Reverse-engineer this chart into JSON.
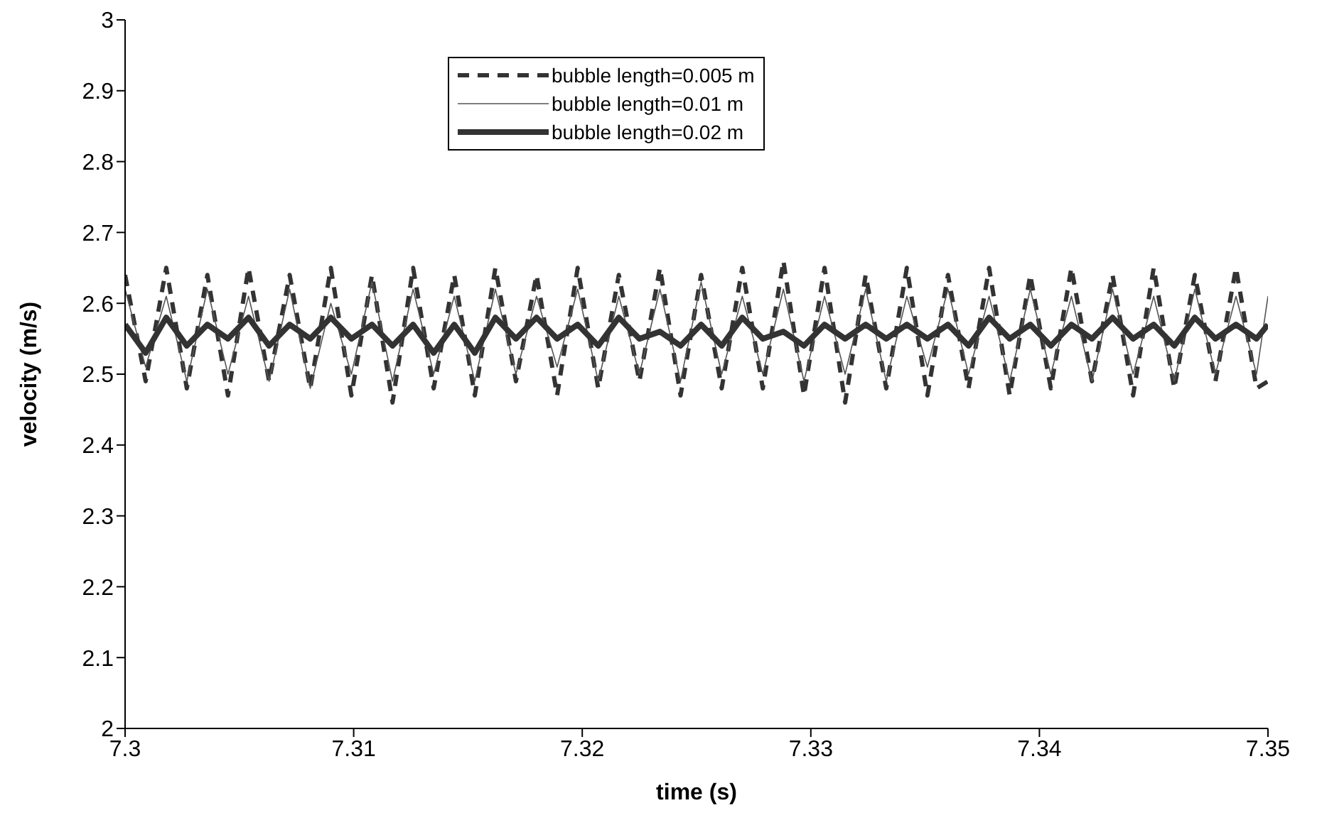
{
  "chart_data": {
    "type": "line",
    "xlabel": "time (s)",
    "ylabel": "velocity (m/s)",
    "x": [
      7.3,
      7.3009,
      7.3018,
      7.3027,
      7.3036,
      7.3045,
      7.3054,
      7.3063,
      7.3072,
      7.3081,
      7.309,
      7.3099,
      7.3108,
      7.3117,
      7.3126,
      7.3135,
      7.3144,
      7.3153,
      7.3162,
      7.3171,
      7.318,
      7.3189,
      7.3198,
      7.3207,
      7.3216,
      7.3225,
      7.3234,
      7.3243,
      7.3252,
      7.3261,
      7.327,
      7.3279,
      7.3288,
      7.3297,
      7.3306,
      7.3315,
      7.3324,
      7.3333,
      7.3342,
      7.3351,
      7.336,
      7.3369,
      7.3378,
      7.3387,
      7.3396,
      7.3405,
      7.3414,
      7.3423,
      7.3432,
      7.3441,
      7.345,
      7.3459,
      7.3468,
      7.3477,
      7.3486,
      7.3495,
      7.35
    ],
    "series": [
      {
        "name": "bubble length=0.005 m",
        "color": "#333333",
        "line_style": "dashed",
        "values": [
          2.64,
          2.49,
          2.65,
          2.48,
          2.64,
          2.47,
          2.65,
          2.49,
          2.64,
          2.48,
          2.65,
          2.47,
          2.64,
          2.46,
          2.65,
          2.48,
          2.64,
          2.47,
          2.65,
          2.49,
          2.64,
          2.47,
          2.65,
          2.48,
          2.64,
          2.49,
          2.65,
          2.47,
          2.64,
          2.48,
          2.65,
          2.48,
          2.66,
          2.47,
          2.65,
          2.46,
          2.64,
          2.48,
          2.65,
          2.47,
          2.64,
          2.48,
          2.65,
          2.47,
          2.64,
          2.48,
          2.65,
          2.49,
          2.64,
          2.47,
          2.65,
          2.48,
          2.64,
          2.49,
          2.65,
          2.48,
          2.49
        ]
      },
      {
        "name": "bubble length=0.01 m",
        "color": "#555555",
        "line_style": "solid",
        "values": [
          2.62,
          2.51,
          2.61,
          2.49,
          2.62,
          2.5,
          2.61,
          2.49,
          2.62,
          2.48,
          2.6,
          2.5,
          2.63,
          2.49,
          2.62,
          2.5,
          2.61,
          2.49,
          2.62,
          2.5,
          2.61,
          2.51,
          2.62,
          2.49,
          2.61,
          2.5,
          2.62,
          2.49,
          2.63,
          2.5,
          2.61,
          2.5,
          2.62,
          2.49,
          2.61,
          2.5,
          2.62,
          2.49,
          2.61,
          2.51,
          2.62,
          2.5,
          2.61,
          2.49,
          2.62,
          2.5,
          2.61,
          2.49,
          2.62,
          2.5,
          2.61,
          2.49,
          2.62,
          2.5,
          2.61,
          2.5,
          2.61
        ]
      },
      {
        "name": "bubble length=0.02 m",
        "color": "#333333",
        "line_style": "solid",
        "values": [
          2.57,
          2.53,
          2.58,
          2.54,
          2.57,
          2.55,
          2.58,
          2.54,
          2.57,
          2.55,
          2.58,
          2.55,
          2.57,
          2.54,
          2.57,
          2.53,
          2.57,
          2.53,
          2.58,
          2.55,
          2.58,
          2.55,
          2.57,
          2.54,
          2.58,
          2.55,
          2.56,
          2.54,
          2.57,
          2.54,
          2.58,
          2.55,
          2.56,
          2.54,
          2.57,
          2.55,
          2.57,
          2.55,
          2.57,
          2.55,
          2.57,
          2.54,
          2.58,
          2.55,
          2.57,
          2.54,
          2.57,
          2.55,
          2.58,
          2.55,
          2.57,
          2.54,
          2.58,
          2.55,
          2.57,
          2.55,
          2.57
        ]
      }
    ],
    "xlim": [
      7.3,
      7.35
    ],
    "xticks": [
      7.3,
      7.31,
      7.32,
      7.33,
      7.34,
      7.35
    ],
    "ylim": [
      2,
      3
    ],
    "yticks": [
      2,
      2.1,
      2.2,
      2.3,
      2.4,
      2.5,
      2.6,
      2.7,
      2.8,
      2.9,
      3
    ],
    "grid": false,
    "legend": "top",
    "marker": "none"
  }
}
